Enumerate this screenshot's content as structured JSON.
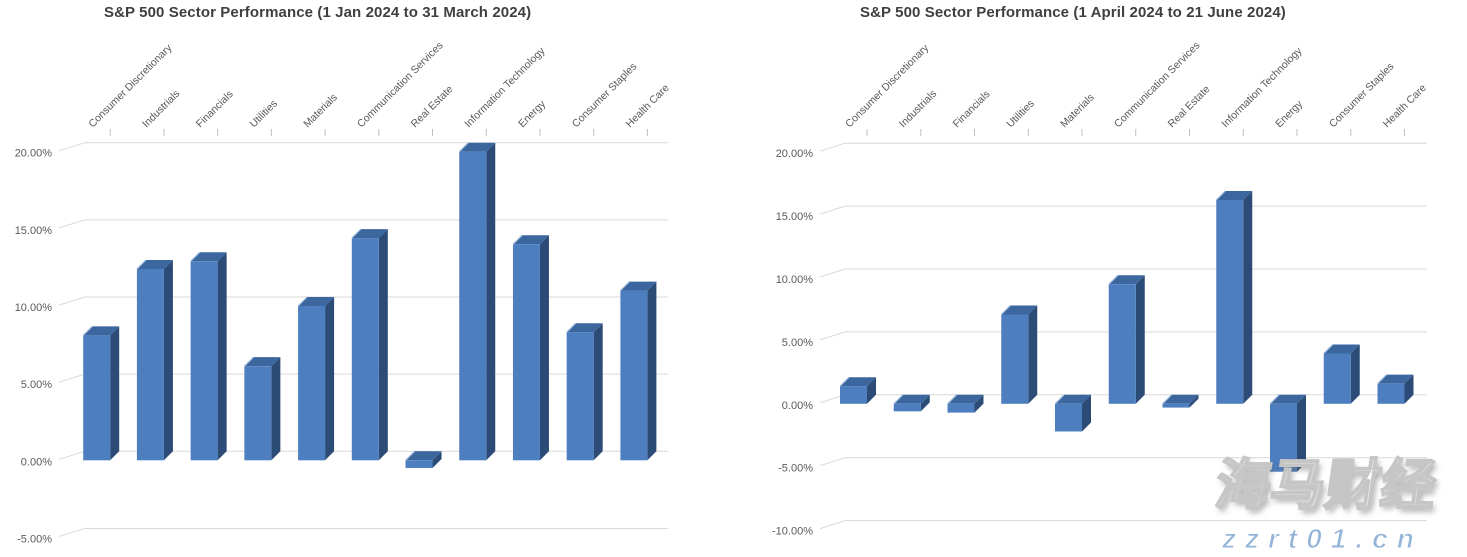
{
  "page": {
    "background": "#ffffff"
  },
  "colors": {
    "bar_front": "#4d7ebf",
    "bar_side": "#2c4c77",
    "bar_top": "#3b669e",
    "bar_top_highlight": "#a9c3e2",
    "gridline": "#d9d9d9",
    "category_tick": "#bfbfbf",
    "axis_text": "#595959",
    "title_text": "#3f3f3f"
  },
  "chart_data": [
    {
      "type": "bar",
      "bar_style": "3d",
      "title": "S&P 500 Sector Performance (1 Jan 2024 to 31 March 2024)",
      "categories": [
        "Consumer Discretionary",
        "Industrials",
        "Financials",
        "Utilities",
        "Materials",
        "Communication Services",
        "Real Estate",
        "Information Technology",
        "Energy",
        "Consumer Staples",
        "Health Care"
      ],
      "values": [
        8.1,
        12.4,
        12.9,
        6.1,
        10.0,
        14.4,
        -0.5,
        20.0,
        14.0,
        8.3,
        11.0
      ],
      "unit": "percent",
      "xlabel": "",
      "ylabel": "",
      "ylim": [
        -5,
        20
      ],
      "ytick_step": 5,
      "ytick_labels": [
        "20.00%",
        "15.00%",
        "10.00%",
        "5.00%",
        "0.00%",
        "-5.00%"
      ],
      "grid": true,
      "legend": "none"
    },
    {
      "type": "bar",
      "bar_style": "3d",
      "title": "S&P 500 Sector Performance (1 April 2024 to 21 June 2024)",
      "categories": [
        "Consumer Discretionary",
        "Industrials",
        "Financials",
        "Utilities",
        "Materials",
        "Communication Services",
        "Real Estate",
        "Information Technology",
        "Energy",
        "Consumer Staples",
        "Health Care"
      ],
      "values": [
        1.4,
        -0.6,
        -0.7,
        7.1,
        -2.2,
        9.5,
        -0.3,
        16.2,
        -5.4,
        4.0,
        1.6
      ],
      "unit": "percent",
      "xlabel": "",
      "ylabel": "",
      "ylim": [
        -10,
        20
      ],
      "ytick_step": 5,
      "ytick_labels": [
        "20.00%",
        "15.00%",
        "10.00%",
        "5.00%",
        "0.00%",
        "-5.00%",
        "-10.00%"
      ],
      "grid": true,
      "legend": "none"
    }
  ],
  "watermark": {
    "brand": "海马财经",
    "url": "zzrt01.cn",
    "brand_color": "#ffffff",
    "url_color": "#95b5d8"
  }
}
